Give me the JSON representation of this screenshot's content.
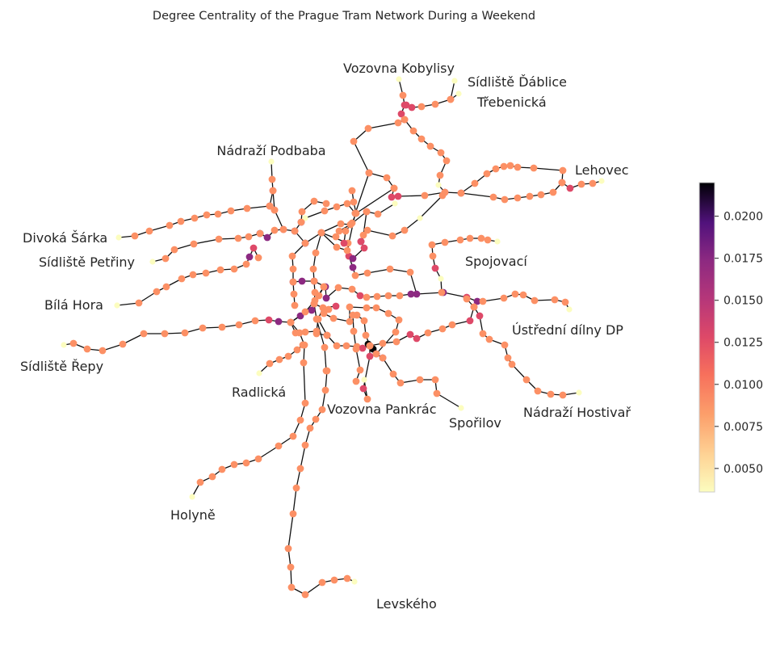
{
  "title": "Degree Centrality of the Prague Tram Network During a Weekend",
  "colormap": "magma_r",
  "colors": {
    "low": "#fcfdbf",
    "mid_low": "#fc9065",
    "mid": "#de4968",
    "mid_high": "#8c2981",
    "high": "#3b0f70",
    "max": "#000004",
    "edge": "#111111"
  },
  "stop_labels": [
    "Vozovna Kobylisy",
    "Sídliště Ďáblice",
    "Třebenická",
    "Nádraží Podbaba",
    "Lehovec",
    "Divoká Šárka",
    "Sídliště Petřiny",
    "Spojovací",
    "Bílá Hora",
    "Ústřední dílny DP",
    "Sídliště Řepy",
    "Radlická",
    "Vozovna Pankrác",
    "Spořilov",
    "Nádraží Hostivař",
    "Holyně",
    "Levského"
  ],
  "colorbar": {
    "min": 0.0036,
    "max": 0.022,
    "ticks": [
      "0.0050",
      "0.0075",
      "0.0100",
      "0.0125",
      "0.0150",
      "0.0175",
      "0.0200"
    ]
  }
}
